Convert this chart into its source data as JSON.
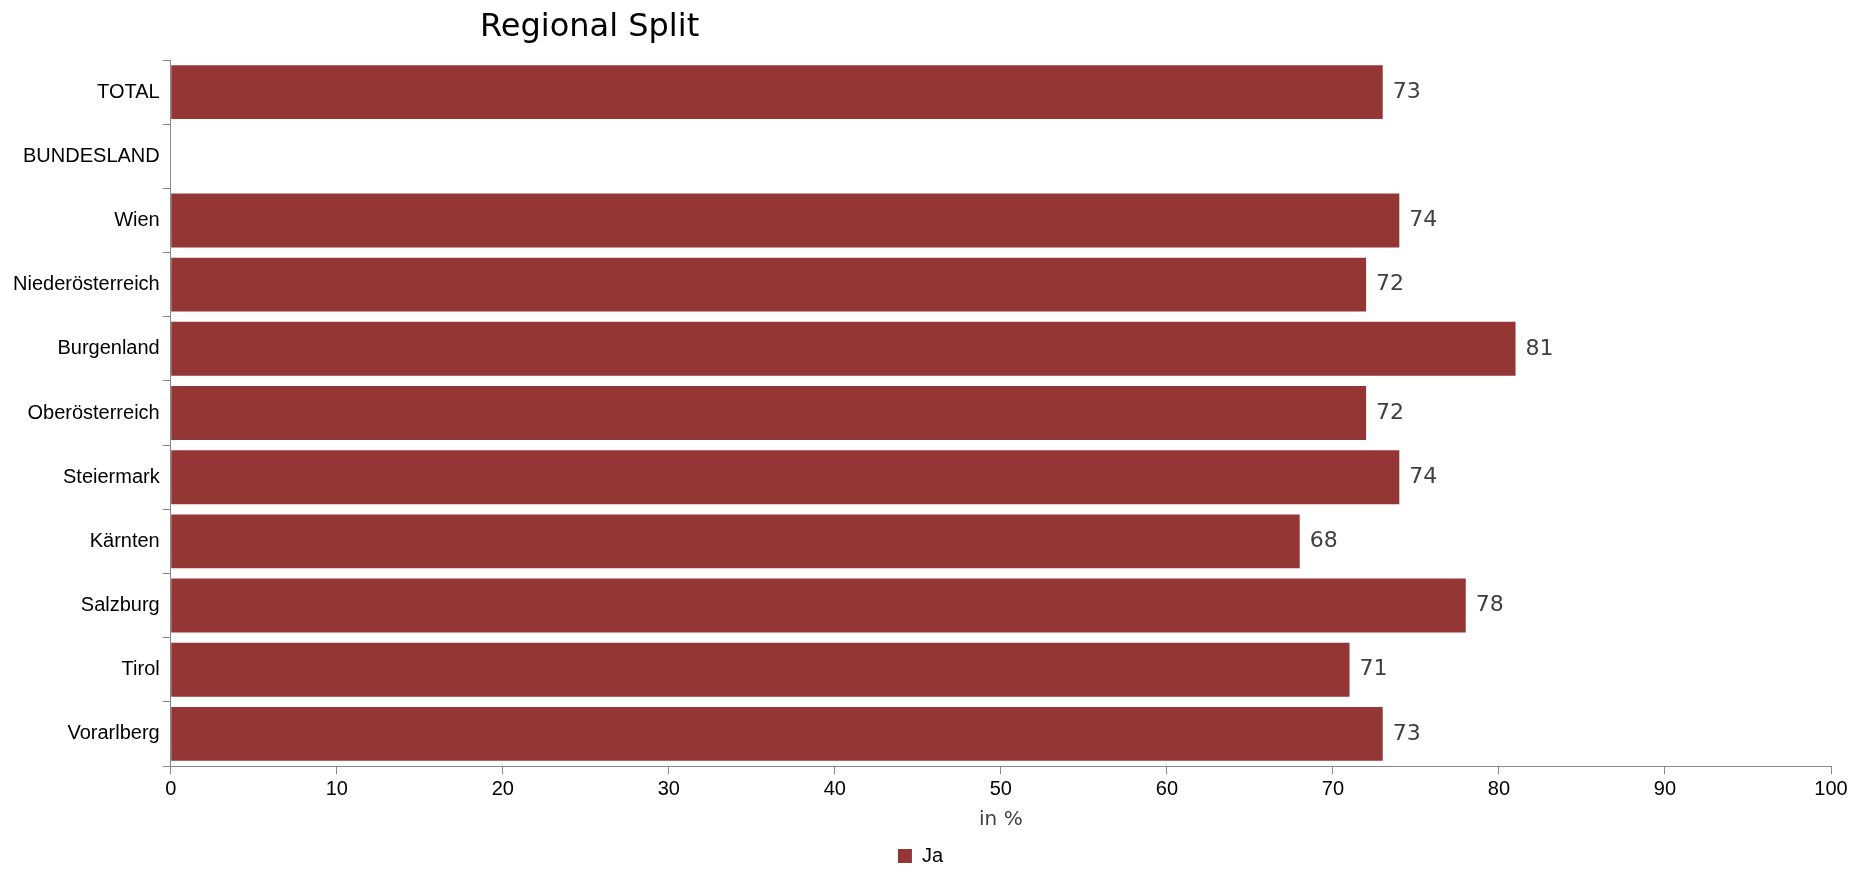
{
  "chart_data": {
    "type": "bar",
    "orientation": "horizontal",
    "title": "Regional Split",
    "xlabel": "in %",
    "categories": [
      "TOTAL",
      "BUNDESLAND",
      "Wien",
      "Niederösterreich",
      "Burgenland",
      "Oberösterreich",
      "Steiermark",
      "Kärnten",
      "Salzburg",
      "Tirol",
      "Vorarlberg"
    ],
    "series": [
      {
        "name": "Ja",
        "color": "#943634",
        "values": [
          73,
          null,
          74,
          72,
          81,
          72,
          74,
          68,
          78,
          71,
          73
        ]
      }
    ],
    "xlim": [
      0,
      100
    ],
    "xticks": [
      0,
      10,
      20,
      30,
      40,
      50,
      60,
      70,
      80,
      90,
      100
    ],
    "grid": false,
    "legend": "bottom",
    "data_labels": true
  }
}
